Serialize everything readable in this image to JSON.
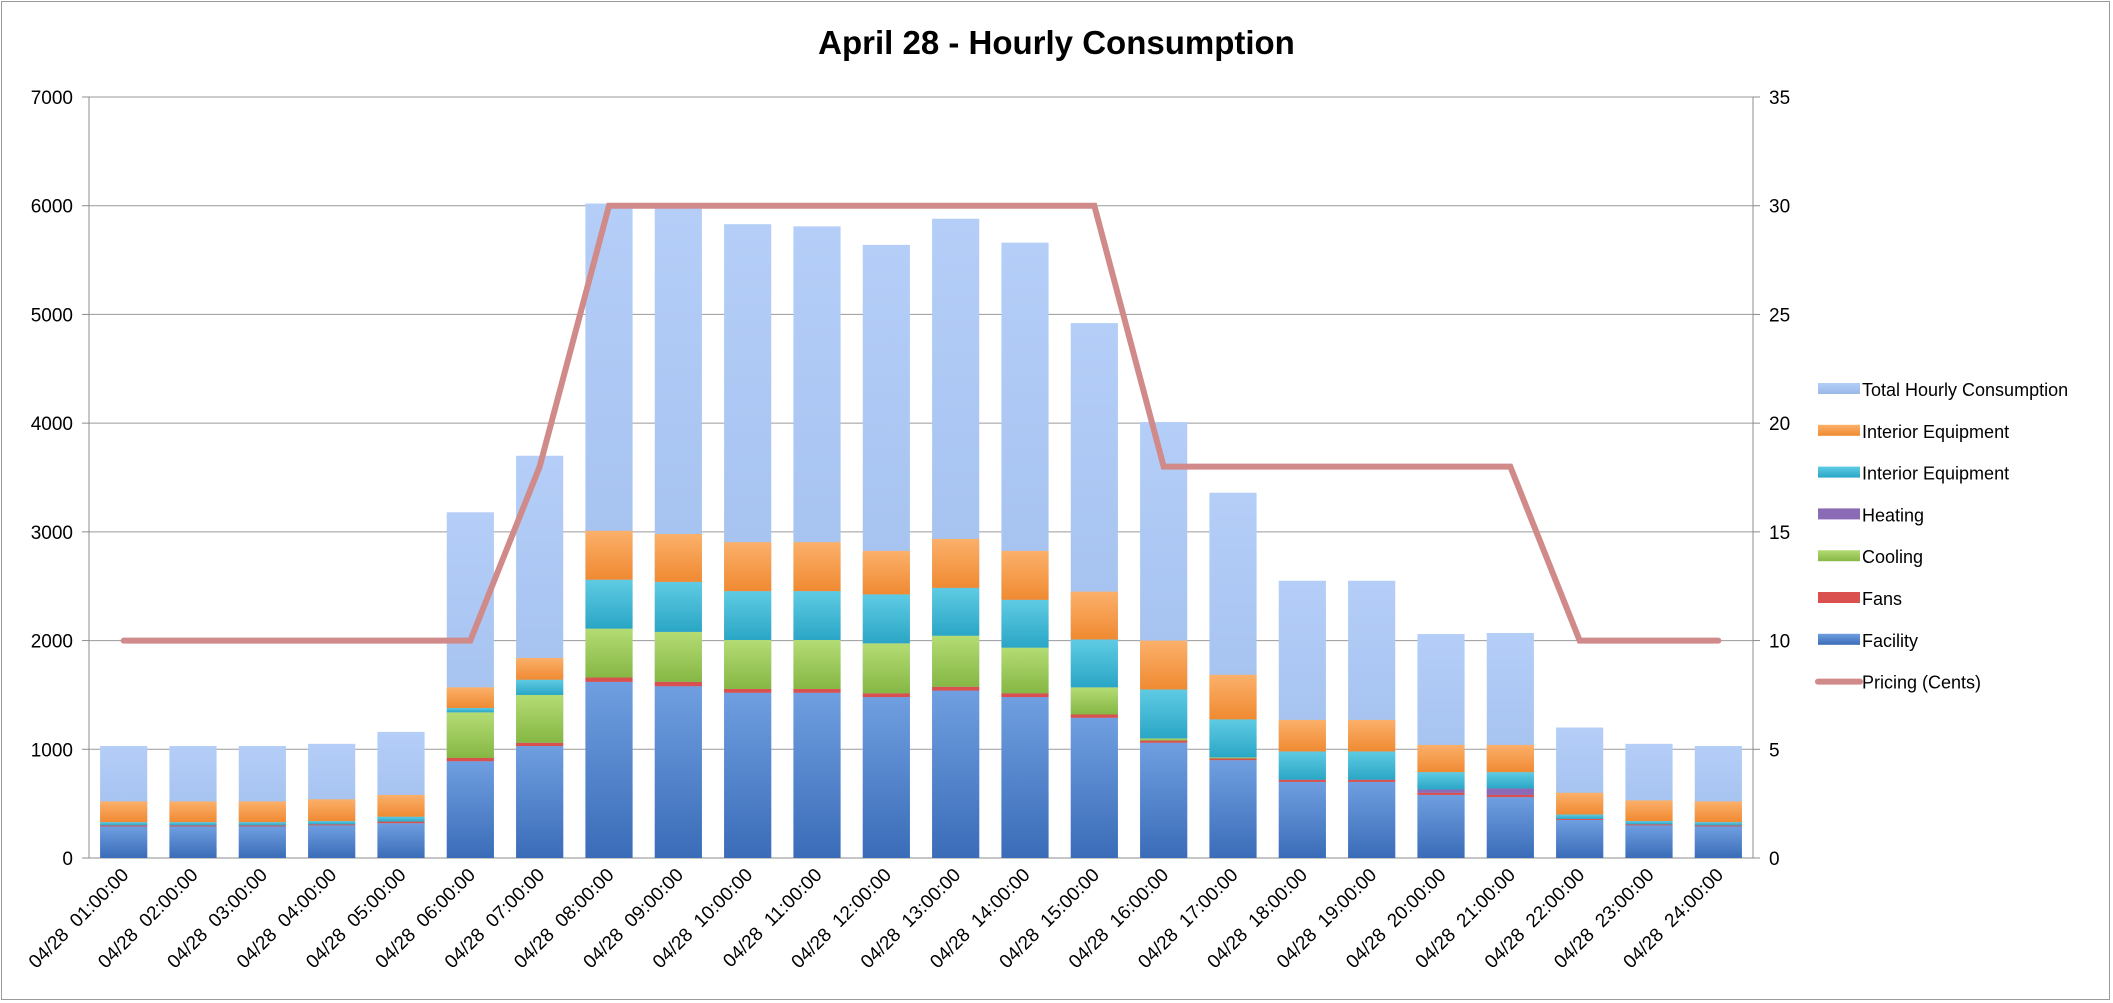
{
  "chart_data": {
    "type": "bar",
    "title": "April 28 - Hourly Consumption",
    "stacked": true,
    "categories": [
      "04/28  01:00:00",
      "04/28  02:00:00",
      "04/28  03:00:00",
      "04/28  04:00:00",
      "04/28  05:00:00",
      "04/28  06:00:00",
      "04/28  07:00:00",
      "04/28  08:00:00",
      "04/28  09:00:00",
      "04/28  10:00:00",
      "04/28  11:00:00",
      "04/28  12:00:00",
      "04/28  13:00:00",
      "04/28  14:00:00",
      "04/28  15:00:00",
      "04/28  16:00:00",
      "04/28  17:00:00",
      "04/28  18:00:00",
      "04/28  19:00:00",
      "04/28  20:00:00",
      "04/28  21:00:00",
      "04/28  22:00:00",
      "04/28  23:00:00",
      "04/28  24:00:00"
    ],
    "ylim": [
      0,
      7000
    ],
    "y2lim": [
      0,
      35
    ],
    "yticks": [
      0,
      1000,
      2000,
      3000,
      4000,
      5000,
      6000,
      7000
    ],
    "y2ticks": [
      0,
      5,
      10,
      15,
      20,
      25,
      30,
      35
    ],
    "grid": true,
    "legend_position": "right",
    "series": [
      {
        "name": "Facility",
        "color": "#4a7fcf",
        "kind": "bar",
        "values": [
          290,
          290,
          290,
          300,
          320,
          890,
          1030,
          1620,
          1580,
          1520,
          1520,
          1480,
          1540,
          1480,
          1290,
          1060,
          900,
          700,
          700,
          580,
          560,
          350,
          300,
          290
        ]
      },
      {
        "name": "Fans",
        "color": "#d9504e",
        "kind": "bar",
        "values": [
          10,
          10,
          10,
          10,
          15,
          30,
          30,
          40,
          40,
          35,
          35,
          35,
          35,
          35,
          30,
          20,
          15,
          20,
          20,
          20,
          20,
          10,
          10,
          10
        ]
      },
      {
        "name": "Cooling",
        "color": "#9bc75a",
        "kind": "bar",
        "values": [
          0,
          0,
          0,
          0,
          0,
          420,
          440,
          450,
          460,
          450,
          450,
          460,
          470,
          420,
          250,
          20,
          10,
          0,
          0,
          0,
          0,
          0,
          0,
          0
        ]
      },
      {
        "name": "Heating",
        "color": "#8b6bb5",
        "kind": "bar",
        "values": [
          0,
          0,
          0,
          0,
          0,
          0,
          0,
          0,
          0,
          0,
          0,
          0,
          0,
          0,
          0,
          0,
          0,
          0,
          0,
          30,
          60,
          0,
          0,
          0
        ]
      },
      {
        "name": "Interior Equipment",
        "color": "#3fb9d4",
        "kind": "bar",
        "values": [
          30,
          30,
          30,
          30,
          45,
          40,
          140,
          450,
          460,
          450,
          450,
          450,
          440,
          440,
          440,
          450,
          350,
          260,
          260,
          160,
          150,
          40,
          30,
          30
        ]
      },
      {
        "name": "Interior Equipment",
        "color": "#f79646",
        "kind": "bar",
        "values": [
          190,
          190,
          190,
          200,
          200,
          190,
          200,
          450,
          440,
          450,
          450,
          400,
          450,
          450,
          440,
          450,
          410,
          290,
          290,
          250,
          250,
          200,
          190,
          190
        ]
      },
      {
        "name": "Total Hourly Consumption",
        "color": "#a9c6f5",
        "kind": "bar",
        "values": [
          1030,
          1030,
          1030,
          1050,
          1160,
          3180,
          3700,
          6020,
          5980,
          5830,
          5810,
          5640,
          5880,
          5660,
          4920,
          4010,
          3360,
          2550,
          2550,
          2060,
          2070,
          1200,
          1050,
          1030
        ]
      },
      {
        "name": "Pricing (Cents)",
        "color": "#d08a8a",
        "kind": "line",
        "axis": "secondary",
        "values": [
          10,
          10,
          10,
          10,
          10,
          10,
          18,
          30,
          30,
          30,
          30,
          30,
          30,
          30,
          30,
          18,
          18,
          18,
          18,
          18,
          18,
          10,
          10,
          10
        ]
      }
    ],
    "legend_order": [
      "Total Hourly Consumption",
      "Interior Equipment",
      "Interior Equipment",
      "Heating",
      "Cooling",
      "Fans",
      "Facility",
      "Pricing (Cents)"
    ]
  }
}
